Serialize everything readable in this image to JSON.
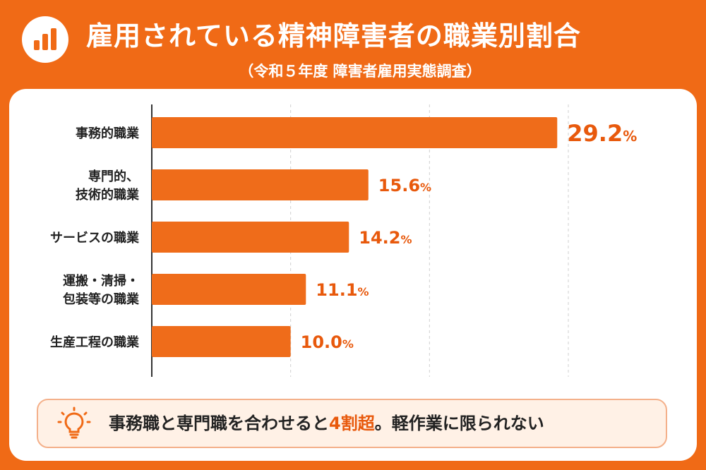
{
  "header": {
    "title": "雇用されている精神障害者の職業別割合",
    "subtitle": "（令和５年度 障害者雇用実態調査）",
    "icon": "bar-chart-icon"
  },
  "chart_data": {
    "type": "bar",
    "orientation": "horizontal",
    "categories": [
      "事務的職業",
      "専門的、\n技術的職業",
      "サービスの職業",
      "運搬・清掃・\n包装等の職業",
      "生産工程の職業"
    ],
    "values": [
      29.2,
      15.6,
      14.2,
      11.1,
      10.0
    ],
    "value_labels": [
      "29.2",
      "15.6",
      "14.2",
      "11.1",
      "10.0"
    ],
    "unit": "%",
    "xlim": [
      0,
      30
    ],
    "grid": "dashed-vertical",
    "bar_color": "#ef6c1a",
    "label_color": "#e8590c"
  },
  "callout": {
    "icon": "lightbulb-icon",
    "text_before": "事務職と専門職を合わせると",
    "highlight": "4割超",
    "text_after": "。軽作業に限られない",
    "highlight_color": "#e8590c"
  },
  "colors": {
    "background": "#f06a16",
    "card": "#ffffff",
    "callout_bg": "#fff1e6",
    "callout_border": "#f4b08a"
  }
}
